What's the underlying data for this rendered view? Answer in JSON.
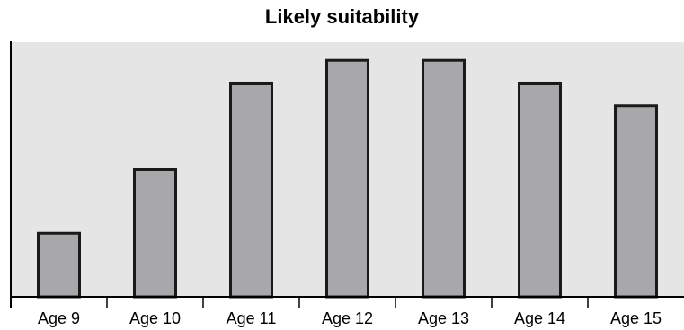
{
  "chart_data": {
    "type": "bar",
    "title": "Likely suitability",
    "categories": [
      "Age 9",
      "Age 10",
      "Age 11",
      "Age 12",
      "Age 13",
      "Age 14",
      "Age 15"
    ],
    "values": [
      28,
      56,
      94,
      104,
      104,
      94,
      84
    ],
    "ylim": [
      0,
      112
    ],
    "xlabel": "",
    "ylabel": "",
    "grid": false,
    "y_axis_labels": false,
    "colors": {
      "plot_bg": "#e5e5e5",
      "bar_fill": "#a8a8aa",
      "bar_stroke": "#1a1a1a",
      "axis": "#000000"
    }
  }
}
